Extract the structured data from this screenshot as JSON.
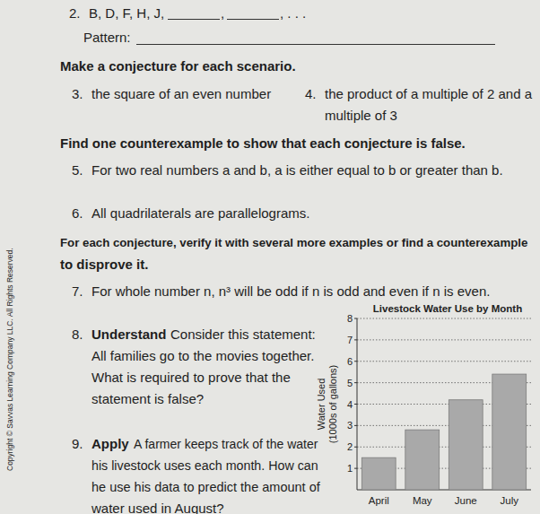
{
  "side_note": "Copyright © Savvas Learning Company LLC. All Rights Reserved.",
  "problem_2": {
    "number": "2.",
    "segments": [
      "B, D, F, H, J,",
      ",",
      ", . . ."
    ],
    "pattern_label": "Pattern:"
  },
  "sections": [
    {
      "heading": [
        "Make a conjecture for each scenario."
      ],
      "problems": [
        {
          "number": "3.",
          "lines": [
            "the square of an even number"
          ]
        },
        {
          "number": "4.",
          "lines": [
            "the product of a multiple of 2 and a",
            "multiple of 3"
          ]
        }
      ]
    },
    {
      "heading": [
        "Find one counterexample to show that each conjecture is false."
      ],
      "problems": [
        {
          "number": "5.",
          "lines": [
            "For two real numbers a and b, a is either equal to b or greater than b."
          ]
        },
        {
          "number": "6.",
          "lines": [
            "All quadrilaterals are parallelograms."
          ]
        }
      ]
    },
    {
      "heading": [
        "For each conjecture, verify it with several more examples or find a counterexample",
        "to disprove it."
      ],
      "problems": [
        {
          "number": "7.",
          "lines": [
            "For whole number n, n³ will be odd if n is odd and even if n is even."
          ]
        },
        {
          "number": "8.",
          "label": "Understand",
          "lines": [
            "Consider this statement:",
            "All families go to the movies together.",
            "What is required to prove that the",
            "statement is false?"
          ]
        },
        {
          "number": "9.",
          "label": "Apply",
          "lines": [
            "A farmer keeps track of the water",
            "his livestock uses each month. How can",
            "he use his data to predict the amount of",
            "water used in August?"
          ]
        }
      ]
    }
  ],
  "chart_data": {
    "type": "bar",
    "title": "Livestock Water Use by Month",
    "y_label": "Water Used (1000s of gallons)",
    "categories": [
      "April",
      "May",
      "June",
      "July"
    ],
    "values": [
      1.5,
      2.8,
      4.2,
      5.4
    ],
    "color": "#a9a9a9",
    "ylim": [
      0,
      8
    ],
    "yticks": [
      1,
      2,
      3,
      4,
      5,
      6,
      7,
      8
    ],
    "grid": true
  }
}
